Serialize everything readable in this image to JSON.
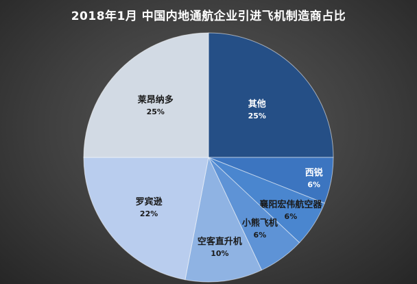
{
  "chart_data": {
    "type": "pie",
    "title": "2018年1月 中国内地通航企业引进飞机制造商占比",
    "slices": [
      {
        "name": "其他",
        "value": 25,
        "label": "25%",
        "color": "#254f86",
        "text": "light"
      },
      {
        "name": "西锐",
        "value": 6,
        "label": "6%",
        "color": "#3c75c0",
        "text": "light"
      },
      {
        "name": "襄阳宏伟航空器",
        "value": 6,
        "label": "6%",
        "color": "#4a86cf",
        "text": "dark"
      },
      {
        "name": "小熊飞机",
        "value": 6,
        "label": "6%",
        "color": "#5e93d6",
        "text": "dark"
      },
      {
        "name": "空客直升机",
        "value": 10,
        "label": "10%",
        "color": "#8fb3e3",
        "text": "dark"
      },
      {
        "name": "罗宾逊",
        "value": 22,
        "label": "22%",
        "color": "#b9cdee",
        "text": "dark"
      },
      {
        "name": "莱昂纳多",
        "value": 25,
        "label": "25%",
        "color": "#d2dae4",
        "text": "dark"
      }
    ]
  }
}
